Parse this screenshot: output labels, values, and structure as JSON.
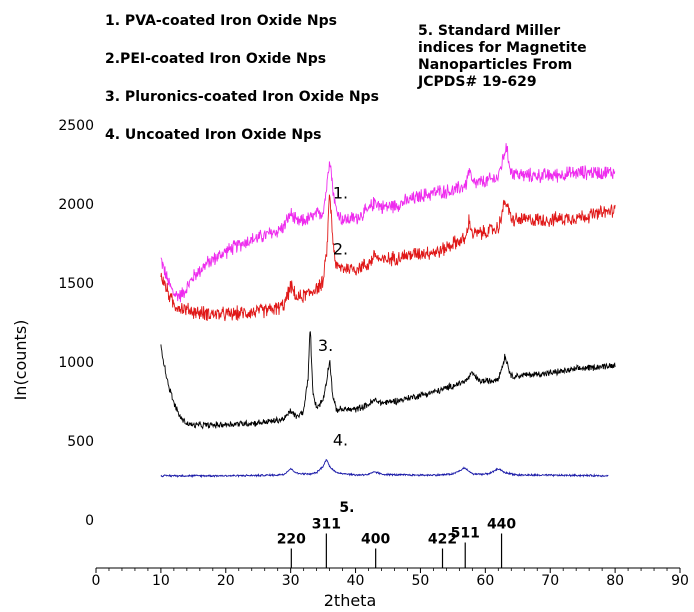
{
  "chart_data": {
    "type": "line",
    "xlabel": "2theta",
    "ylabel": "In(counts)",
    "xlim": [
      0,
      90
    ],
    "ylim": [
      0,
      2500
    ],
    "xticks": [
      "0",
      "10",
      "20",
      "30",
      "40",
      "50",
      "60",
      "70",
      "80",
      "90"
    ],
    "yticks": [
      "0",
      "500",
      "1000",
      "1500",
      "2000",
      "2500"
    ],
    "grid": false,
    "legend_entries": [
      "1. PVA-coated Iron Oxide Nps",
      "2.PEI-coated Iron Oxide Nps",
      "3. Pluronics-coated Iron Oxide Nps",
      "4. Uncoated Iron Oxide Nps"
    ],
    "legend_note": [
      "5. Standard Miller",
      "indices for Magnetite",
      "Nanoparticles From",
      "JCPDS# 19-629"
    ],
    "series": [
      {
        "label": "1.",
        "color": "#ee2bee",
        "noise": 55,
        "points": [
          [
            10,
            1650
          ],
          [
            11,
            1520
          ],
          [
            12,
            1430
          ],
          [
            13,
            1420
          ],
          [
            14,
            1470
          ],
          [
            15,
            1540
          ],
          [
            17,
            1620
          ],
          [
            20,
            1700
          ],
          [
            23,
            1760
          ],
          [
            26,
            1800
          ],
          [
            28,
            1830
          ],
          [
            29,
            1860
          ],
          [
            30,
            1940
          ],
          [
            31,
            1880
          ],
          [
            33,
            1910
          ],
          [
            35,
            1950
          ],
          [
            35.6,
            2120
          ],
          [
            36,
            2310
          ],
          [
            36.5,
            2100
          ],
          [
            37,
            1960
          ],
          [
            38,
            1900
          ],
          [
            40,
            1910
          ],
          [
            42,
            1960
          ],
          [
            43,
            2020
          ],
          [
            44,
            1980
          ],
          [
            46,
            1990
          ],
          [
            50,
            2050
          ],
          [
            53,
            2080
          ],
          [
            55,
            2080
          ],
          [
            57,
            2120
          ],
          [
            57.5,
            2220
          ],
          [
            58,
            2130
          ],
          [
            60,
            2140
          ],
          [
            62,
            2170
          ],
          [
            62.8,
            2300
          ],
          [
            63.2,
            2360
          ],
          [
            64,
            2200
          ],
          [
            66,
            2180
          ],
          [
            70,
            2180
          ],
          [
            75,
            2200
          ],
          [
            80,
            2200
          ]
        ]
      },
      {
        "label": "2.",
        "color": "#e01818",
        "noise": 55,
        "points": [
          [
            10,
            1550
          ],
          [
            11,
            1450
          ],
          [
            12,
            1360
          ],
          [
            14,
            1330
          ],
          [
            16,
            1310
          ],
          [
            20,
            1300
          ],
          [
            25,
            1320
          ],
          [
            28,
            1340
          ],
          [
            29,
            1360
          ],
          [
            30,
            1480
          ],
          [
            31,
            1400
          ],
          [
            33,
            1440
          ],
          [
            35,
            1500
          ],
          [
            35.6,
            1720
          ],
          [
            36,
            2080
          ],
          [
            36.5,
            1780
          ],
          [
            37,
            1600
          ],
          [
            40,
            1590
          ],
          [
            42,
            1620
          ],
          [
            43,
            1680
          ],
          [
            44,
            1640
          ],
          [
            46,
            1660
          ],
          [
            50,
            1690
          ],
          [
            53,
            1700
          ],
          [
            55,
            1750
          ],
          [
            57,
            1780
          ],
          [
            57.5,
            1900
          ],
          [
            58,
            1810
          ],
          [
            60,
            1820
          ],
          [
            62,
            1850
          ],
          [
            62.8,
            1980
          ],
          [
            63.2,
            2020
          ],
          [
            64,
            1900
          ],
          [
            67,
            1900
          ],
          [
            70,
            1900
          ],
          [
            75,
            1920
          ],
          [
            80,
            1960
          ]
        ]
      },
      {
        "label": "3.",
        "color": "#000000",
        "noise": 25,
        "points": [
          [
            10,
            1100
          ],
          [
            11,
            880
          ],
          [
            12,
            740
          ],
          [
            13,
            650
          ],
          [
            14,
            610
          ],
          [
            15,
            600
          ],
          [
            18,
            600
          ],
          [
            20,
            605
          ],
          [
            25,
            615
          ],
          [
            28,
            630
          ],
          [
            29,
            640
          ],
          [
            30,
            690
          ],
          [
            31,
            650
          ],
          [
            32,
            690
          ],
          [
            32.7,
            900
          ],
          [
            33,
            1240
          ],
          [
            33.4,
            820
          ],
          [
            34,
            710
          ],
          [
            35,
            760
          ],
          [
            35.6,
            900
          ],
          [
            36,
            1020
          ],
          [
            36.5,
            780
          ],
          [
            37,
            700
          ],
          [
            40,
            700
          ],
          [
            42,
            730
          ],
          [
            43,
            760
          ],
          [
            44,
            740
          ],
          [
            47,
            760
          ],
          [
            50,
            790
          ],
          [
            53,
            820
          ],
          [
            55,
            850
          ],
          [
            57,
            880
          ],
          [
            58,
            930
          ],
          [
            59,
            880
          ],
          [
            61,
            880
          ],
          [
            62,
            900
          ],
          [
            62.7,
            980
          ],
          [
            63,
            1040
          ],
          [
            64,
            910
          ],
          [
            67,
            920
          ],
          [
            70,
            930
          ],
          [
            75,
            960
          ],
          [
            80,
            980
          ]
        ]
      },
      {
        "label": "4.",
        "color": "#1a1aa8",
        "noise": 7,
        "points": [
          [
            10,
            280
          ],
          [
            15,
            280
          ],
          [
            20,
            280
          ],
          [
            25,
            282
          ],
          [
            28,
            285
          ],
          [
            29,
            290
          ],
          [
            30,
            325
          ],
          [
            31,
            295
          ],
          [
            33,
            290
          ],
          [
            34,
            300
          ],
          [
            35,
            340
          ],
          [
            35.5,
            385
          ],
          [
            36,
            340
          ],
          [
            37,
            300
          ],
          [
            40,
            285
          ],
          [
            42,
            288
          ],
          [
            43,
            305
          ],
          [
            44,
            290
          ],
          [
            46,
            286
          ],
          [
            50,
            284
          ],
          [
            53,
            285
          ],
          [
            54,
            288
          ],
          [
            55,
            292
          ],
          [
            56,
            310
          ],
          [
            56.8,
            330
          ],
          [
            58,
            292
          ],
          [
            60,
            290
          ],
          [
            61,
            300
          ],
          [
            62,
            325
          ],
          [
            63,
            300
          ],
          [
            65,
            285
          ],
          [
            70,
            283
          ],
          [
            75,
            282
          ],
          [
            79,
            280
          ]
        ]
      }
    ],
    "miller_indices": {
      "label": "5.",
      "lines": [
        {
          "two_theta": 30.1,
          "hkl": "220",
          "value": 65
        },
        {
          "two_theta": 35.5,
          "hkl": "311",
          "value": 115
        },
        {
          "two_theta": 43.1,
          "hkl": "400",
          "value": 65
        },
        {
          "two_theta": 53.4,
          "hkl": "422",
          "value": 65
        },
        {
          "two_theta": 56.9,
          "hkl": "511",
          "value": 85
        },
        {
          "two_theta": 62.5,
          "hkl": "440",
          "value": 115
        }
      ]
    }
  }
}
